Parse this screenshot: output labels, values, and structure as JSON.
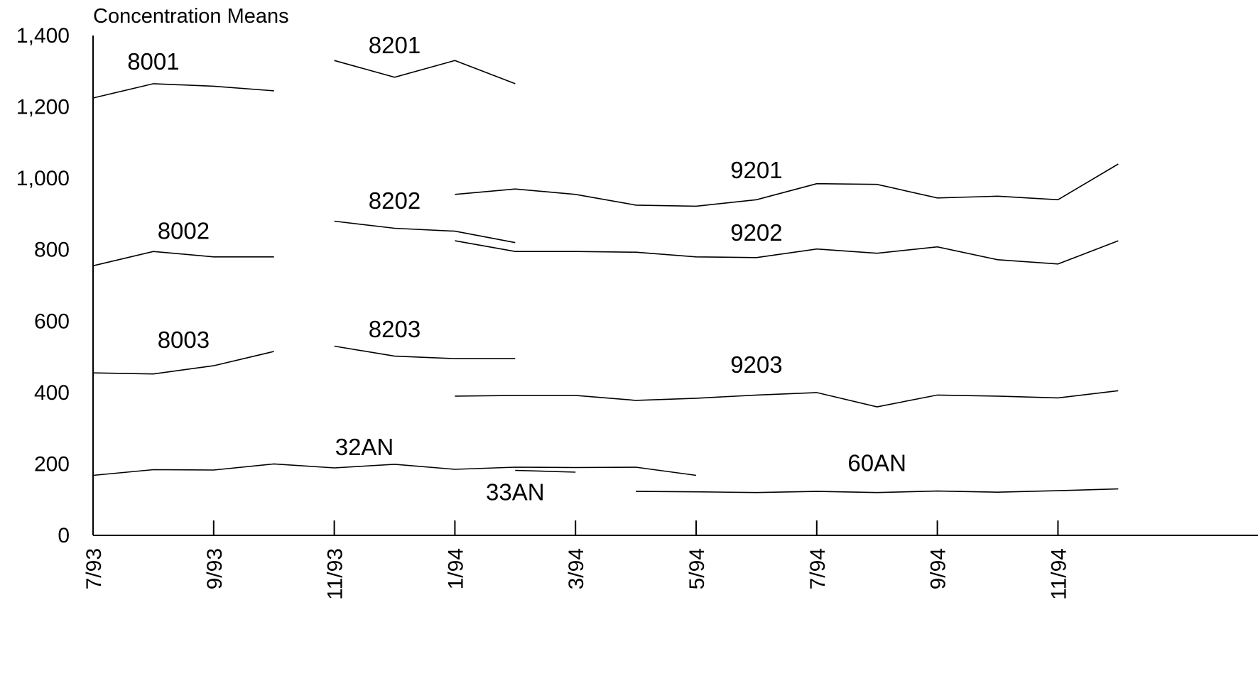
{
  "chart_data": {
    "type": "line",
    "title": "Concentration Means",
    "xlabel": "",
    "ylabel": "",
    "ylim": [
      0,
      1400
    ],
    "yticks": [
      0,
      200,
      400,
      600,
      800,
      1000,
      1200,
      1400
    ],
    "ytick_labels": [
      "0",
      "200",
      "400",
      "600",
      "800",
      "1,000",
      "1,200",
      "1,400"
    ],
    "x_months": [
      "7/93",
      "8/93",
      "9/93",
      "10/93",
      "11/93",
      "12/93",
      "1/94",
      "2/94",
      "3/94",
      "4/94",
      "5/94",
      "6/94",
      "7/94",
      "8/94",
      "9/94",
      "10/94",
      "11/94",
      "12/94"
    ],
    "x_tick_labels": [
      "7/93",
      "9/93",
      "11/93",
      "1/94",
      "3/94",
      "5/94",
      "7/94",
      "9/94",
      "11/94"
    ],
    "grid": false,
    "legend": "none",
    "series": [
      {
        "name": "8001",
        "start": "7/93",
        "values": [
          1225,
          1265,
          1258,
          1245
        ],
        "label_at": "8/93",
        "label_value": 1305
      },
      {
        "name": "8201",
        "start": "11/93",
        "values": [
          1330,
          1283,
          1330,
          1265
        ],
        "label_at": "12/93",
        "label_value": 1350
      },
      {
        "name": "8002",
        "start": "7/93",
        "values": [
          755,
          795,
          780,
          780
        ],
        "label_at": "8/93-9/93",
        "label_value": 830
      },
      {
        "name": "8202",
        "start": "11/93",
        "values": [
          880,
          860,
          852,
          820
        ],
        "label_at": "12/93",
        "label_value": 915
      },
      {
        "name": "9201",
        "start": "1/94",
        "values": [
          955,
          970,
          955,
          925,
          922,
          940,
          985,
          983,
          945,
          950,
          940,
          1040
        ],
        "label_at": "6/94",
        "label_value": 1000
      },
      {
        "name": "9202",
        "start": "1/94",
        "values": [
          825,
          795,
          795,
          793,
          780,
          778,
          802,
          790,
          808,
          772,
          760,
          825
        ],
        "label_at": "6/94",
        "label_value": 825
      },
      {
        "name": "8003",
        "start": "7/93",
        "values": [
          455,
          452,
          475,
          515
        ],
        "label_at": "8/93-9/93",
        "label_value": 525
      },
      {
        "name": "8203",
        "start": "11/93",
        "values": [
          530,
          502,
          495,
          495
        ],
        "label_at": "12/93",
        "label_value": 555
      },
      {
        "name": "9203",
        "start": "1/94",
        "values": [
          390,
          392,
          392,
          378,
          384,
          393,
          400,
          360,
          393,
          390,
          385,
          405
        ],
        "label_at": "6/94",
        "label_value": 455
      },
      {
        "name": "32AN",
        "start": "7/93",
        "values": [
          168,
          184,
          183,
          200,
          189,
          199,
          185,
          191,
          190,
          191,
          168
        ],
        "label_at": "11/93-12/93",
        "label_value": 225
      },
      {
        "name": "33AN",
        "start": "2/94",
        "values": [
          182,
          177
        ],
        "label_at": "2/94",
        "label_value": 98
      },
      {
        "name": "60AN",
        "start": "4/94",
        "values": [
          123,
          122,
          120,
          123,
          120,
          124,
          121,
          125,
          130
        ],
        "label_at": "8/94",
        "label_value": 180
      }
    ]
  }
}
